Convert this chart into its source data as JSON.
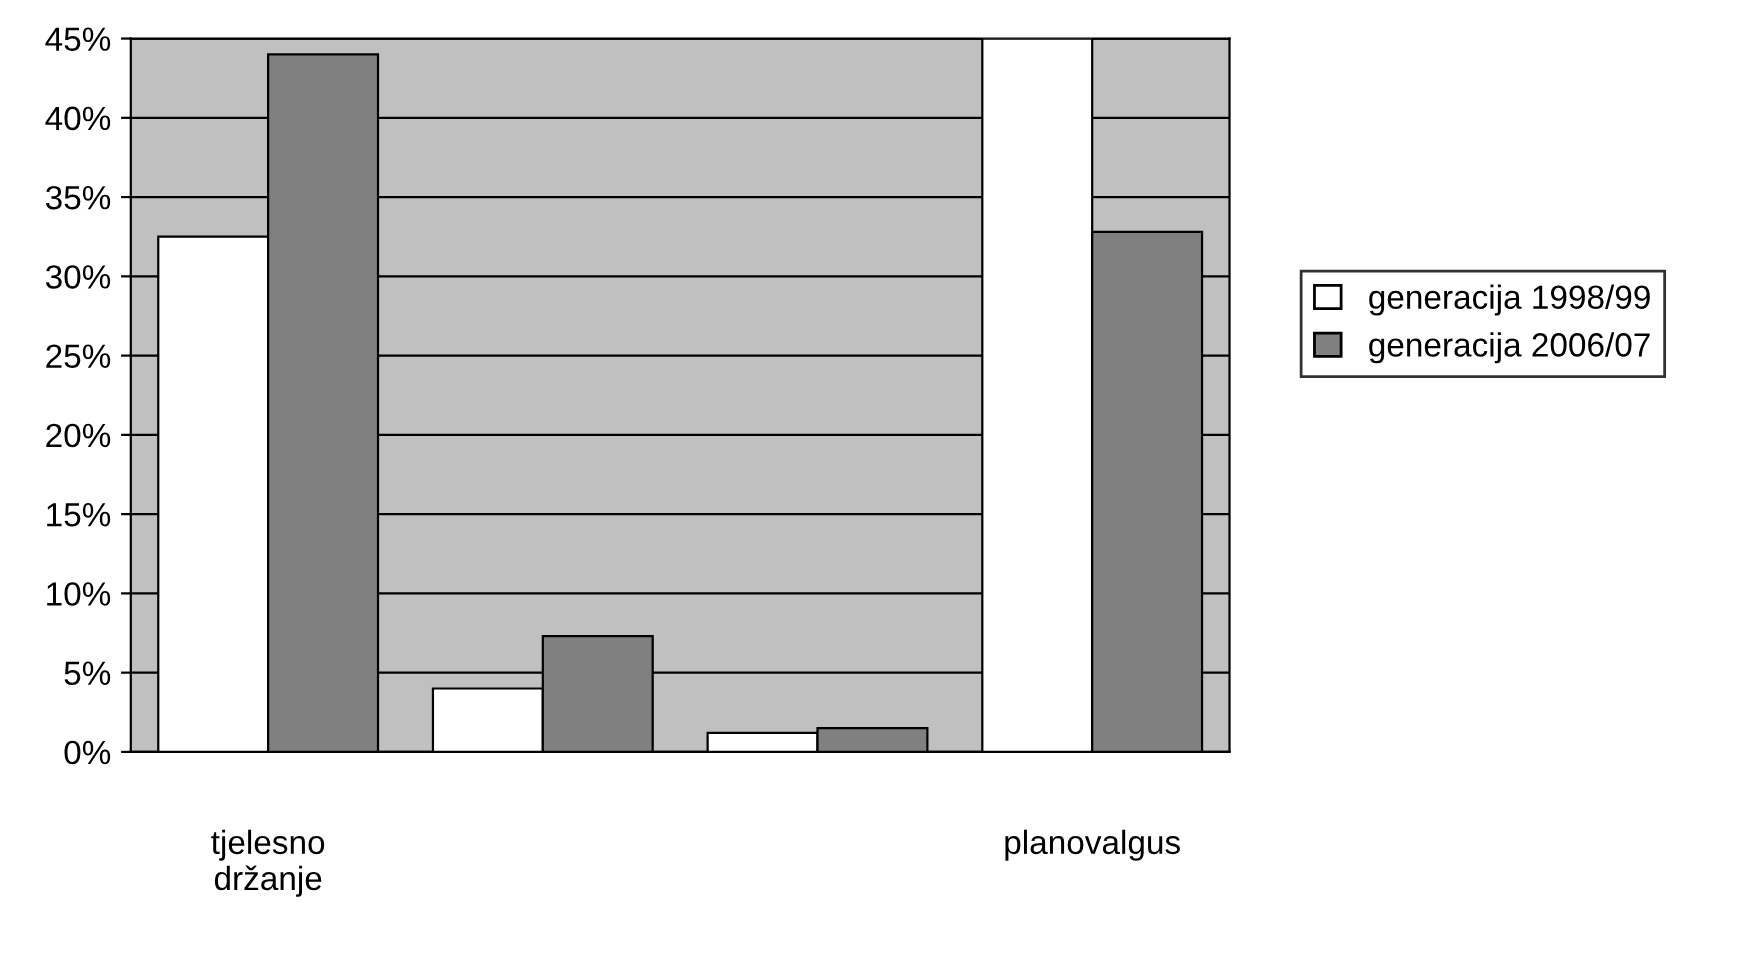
{
  "chart_data": {
    "type": "bar",
    "categories": [
      "tjelesno držanje",
      null,
      null,
      "planovalgus"
    ],
    "series": [
      {
        "name": "generacija 1998/99",
        "color": "#ffffff",
        "values": [
          32.5,
          4,
          1.2,
          45
        ]
      },
      {
        "name": "generacija 2006/07",
        "color": "#808080",
        "values": [
          44,
          7.3,
          1.5,
          32.8
        ]
      }
    ],
    "ylim": [
      0,
      45
    ],
    "yticks": [
      {
        "value": 0,
        "label": "0%"
      },
      {
        "value": 5,
        "label": "5%"
      },
      {
        "value": 10,
        "label": "10%"
      },
      {
        "value": 15,
        "label": "15%"
      },
      {
        "value": 20,
        "label": "20%"
      },
      {
        "value": 25,
        "label": "25%"
      },
      {
        "value": 30,
        "label": "30%"
      },
      {
        "value": 35,
        "label": "35%"
      },
      {
        "value": 40,
        "label": "40%"
      },
      {
        "value": 45,
        "label": "45%"
      }
    ],
    "grid": "y",
    "legend": "right"
  }
}
